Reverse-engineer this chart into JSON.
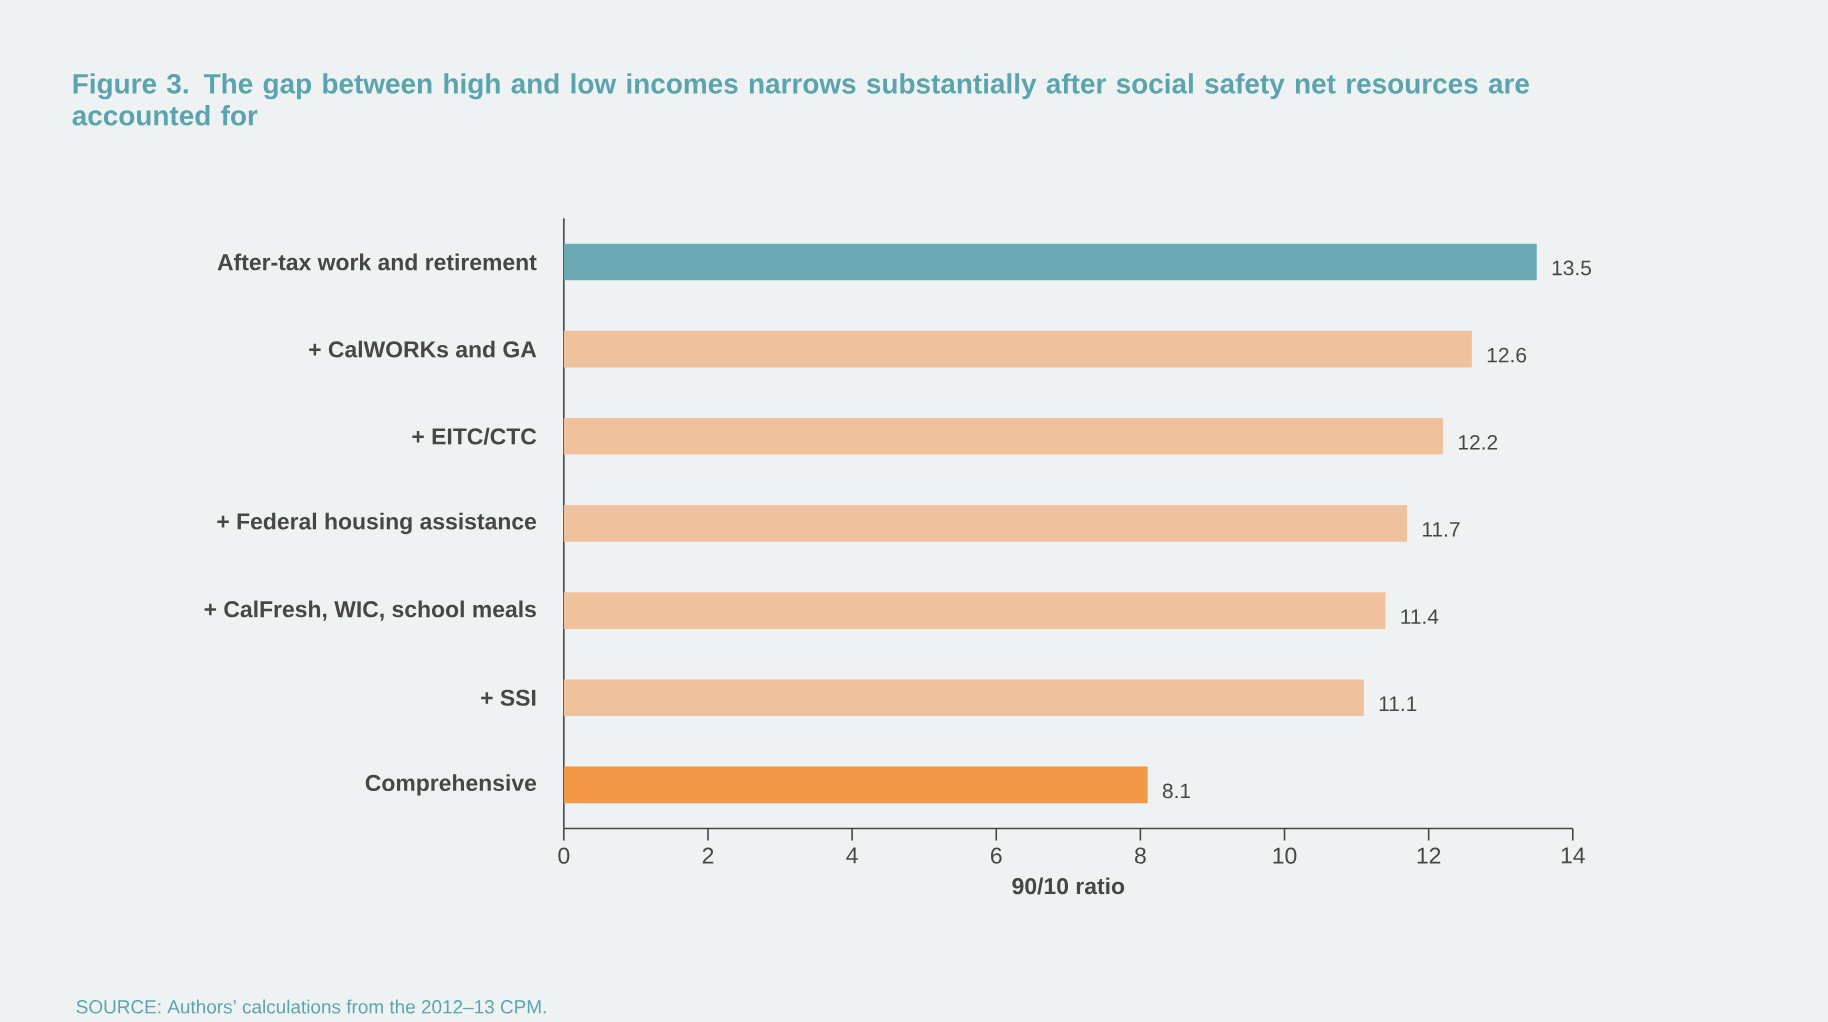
{
  "chart_data": {
    "type": "bar",
    "orientation": "horizontal",
    "title": "Figure 3. The gap between high and low incomes narrows substantially after social safety net resources are accounted for",
    "categories": [
      "After-tax work and retirement",
      "+ CalWORKs and GA",
      "+ EITC/CTC",
      "+ Federal housing assistance",
      "+ CalFresh, WIC, school meals",
      "+ SSI",
      "Comprehensive"
    ],
    "values": [
      13.5,
      12.6,
      12.2,
      11.7,
      11.4,
      11.1,
      8.1
    ],
    "value_labels": [
      "13.5",
      "12.6",
      "12.2",
      "11.7",
      "11.4",
      "11.1",
      "8.1"
    ],
    "colors": [
      "#6caab3",
      "#f0c19d",
      "#f0c19d",
      "#f0c19d",
      "#f0c19d",
      "#f0c19d",
      "#f09845"
    ],
    "xlim": [
      0,
      14
    ],
    "xticks": [
      0,
      2,
      4,
      6,
      8,
      10,
      12,
      14
    ],
    "xlabel": "90/10 ratio",
    "annotations": [
      "SOURCE: Authors’ calculations from the 2012–13 CPM."
    ]
  }
}
